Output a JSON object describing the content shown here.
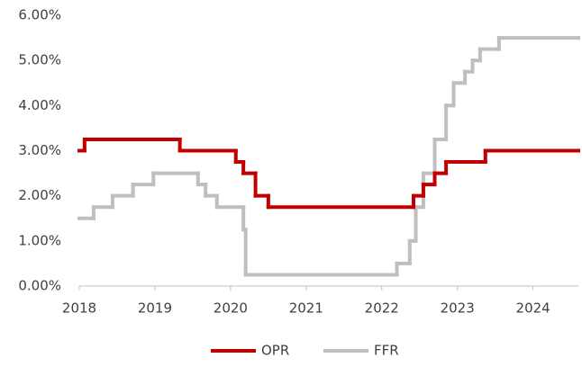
{
  "chart_data": {
    "type": "step",
    "xlim": [
      2018,
      2024.6
    ],
    "xticks": [
      2018,
      2019,
      2020,
      2021,
      2022,
      2023,
      2024
    ],
    "ylim": [
      0,
      6
    ],
    "yticks": [
      {
        "value": 0,
        "label": "0.00%"
      },
      {
        "value": 1,
        "label": "1.00%"
      },
      {
        "value": 2,
        "label": "2.00%"
      },
      {
        "value": 3,
        "label": "3.00%"
      },
      {
        "value": 4,
        "label": "4.00%"
      },
      {
        "value": 5,
        "label": "5.00%"
      },
      {
        "value": 6,
        "label": "6.00%"
      }
    ],
    "legend": "bottom",
    "series": [
      {
        "name": "OPR",
        "color": "#c00000",
        "x": [
          2018,
          2018.07,
          2019.33,
          2020.07,
          2020.17,
          2020.33,
          2020.5,
          2022.42,
          2022.55,
          2022.7,
          2022.85,
          2023.37,
          2024.6
        ],
        "values": [
          3.0,
          3.25,
          3.0,
          2.75,
          2.5,
          2.0,
          1.75,
          2.0,
          2.25,
          2.5,
          2.75,
          3.0,
          3.0
        ]
      },
      {
        "name": "FFR",
        "color": "#bfbfbf",
        "x": [
          2018,
          2018.19,
          2018.44,
          2018.71,
          2018.98,
          2019.57,
          2019.67,
          2019.82,
          2020.17,
          2020.2,
          2022.2,
          2022.37,
          2022.45,
          2022.55,
          2022.7,
          2022.85,
          2022.95,
          2023.1,
          2023.2,
          2023.3,
          2023.55,
          2024.6
        ],
        "values": [
          1.5,
          1.75,
          2.0,
          2.25,
          2.5,
          2.25,
          2.0,
          1.75,
          1.25,
          0.25,
          0.5,
          1.0,
          1.75,
          2.5,
          3.25,
          4.0,
          4.5,
          4.75,
          5.0,
          5.25,
          5.5,
          5.5
        ]
      }
    ]
  }
}
